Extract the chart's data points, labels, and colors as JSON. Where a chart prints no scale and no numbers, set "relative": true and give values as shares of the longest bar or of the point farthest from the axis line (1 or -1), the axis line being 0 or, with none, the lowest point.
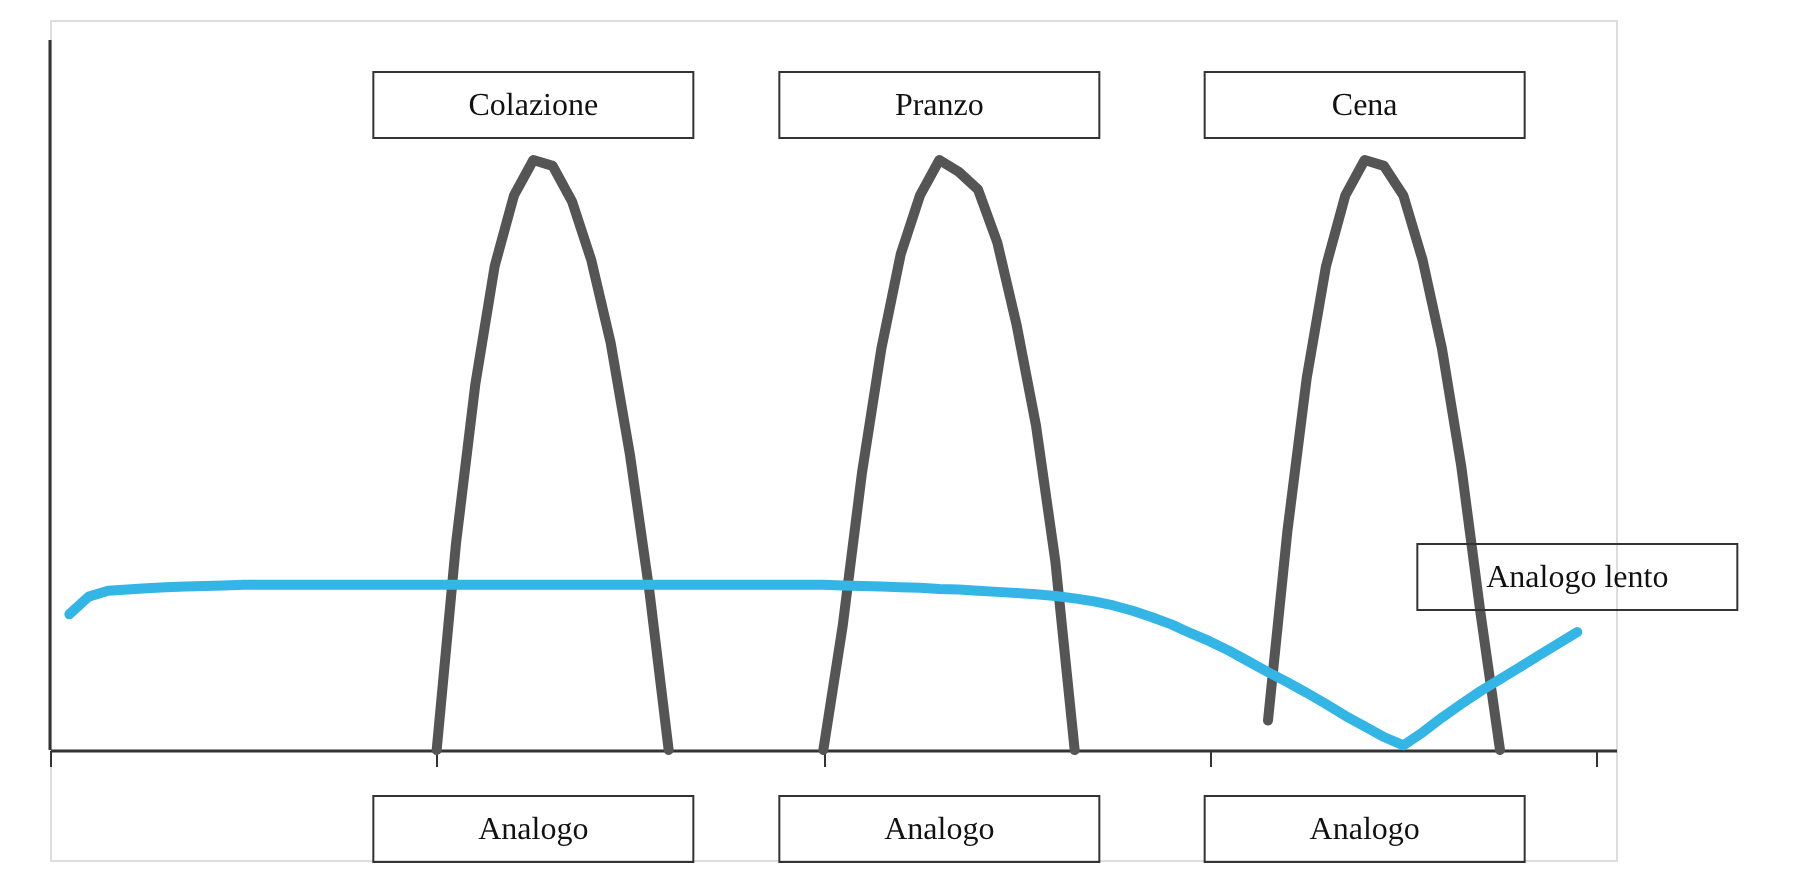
{
  "chart_data": {
    "type": "line",
    "relative": true,
    "grid": false,
    "marker": "none",
    "line_style": "solid",
    "categories": [
      null,
      null,
      null,
      null,
      null,
      null,
      null,
      null,
      null,
      null,
      null,
      null,
      null,
      null,
      null,
      null,
      null,
      null,
      null,
      null,
      null,
      null,
      null,
      null,
      null,
      null,
      null,
      null,
      null,
      null,
      null,
      null,
      null,
      null,
      null,
      null,
      null,
      null,
      null,
      null,
      null,
      null,
      null,
      null,
      null,
      null,
      null,
      null,
      null,
      null,
      null,
      null,
      null,
      null,
      null,
      null,
      null,
      null,
      null,
      null,
      null,
      null,
      null,
      null,
      null,
      null,
      null,
      null,
      null,
      null,
      null,
      null,
      null,
      null,
      null,
      null,
      null,
      null,
      null,
      null,
      null,
      null
    ],
    "series": [
      {
        "color": "#555555",
        "values": [
          null,
          null,
          null,
          null,
          null,
          null,
          null,
          null,
          null,
          null,
          null,
          null,
          null,
          null,
          null,
          null,
          null,
          null,
          null,
          null,
          0,
          0.35,
          0.62,
          0.82,
          0.94,
          1,
          0.99,
          0.93,
          0.83,
          0.69,
          0.5,
          0.27,
          0,
          null,
          null,
          null,
          null,
          null,
          null,
          null,
          null,
          null,
          null,
          null,
          null,
          null,
          null,
          null,
          null,
          null,
          null,
          null,
          null,
          null,
          null,
          null,
          null,
          null,
          null,
          null,
          null,
          null,
          null,
          null,
          null,
          null,
          null,
          null,
          null,
          null,
          null,
          null,
          null,
          null,
          null,
          null,
          null,
          null,
          null,
          null,
          null,
          null
        ]
      },
      {
        "color": "#555555",
        "values": [
          null,
          null,
          null,
          null,
          null,
          null,
          null,
          null,
          null,
          null,
          null,
          null,
          null,
          null,
          null,
          null,
          null,
          null,
          null,
          null,
          null,
          null,
          null,
          null,
          null,
          null,
          null,
          null,
          null,
          null,
          null,
          null,
          null,
          null,
          null,
          null,
          null,
          null,
          null,
          null,
          0,
          0.21,
          0.47,
          0.68,
          0.84,
          0.94,
          1,
          0.98,
          0.95,
          0.86,
          0.72,
          0.55,
          0.32,
          0,
          null,
          null,
          null,
          null,
          null,
          null,
          null,
          null,
          null,
          null,
          null,
          null,
          null,
          null,
          null,
          null,
          null,
          null,
          null,
          null,
          null,
          null,
          null,
          null,
          null,
          null,
          null,
          null
        ]
      },
      {
        "color": "#555555",
        "values": [
          null,
          null,
          null,
          null,
          null,
          null,
          null,
          null,
          null,
          null,
          null,
          null,
          null,
          null,
          null,
          null,
          null,
          null,
          null,
          null,
          null,
          null,
          null,
          null,
          null,
          null,
          null,
          null,
          null,
          null,
          null,
          null,
          null,
          null,
          null,
          null,
          null,
          null,
          null,
          null,
          null,
          null,
          null,
          null,
          null,
          null,
          null,
          null,
          null,
          null,
          null,
          null,
          null,
          null,
          null,
          null,
          null,
          null,
          null,
          null,
          null,
          null,
          null,
          0.05,
          0.37,
          0.63,
          0.82,
          0.94,
          1,
          0.99,
          0.94,
          0.83,
          0.68,
          0.48,
          0.23,
          0,
          null,
          null,
          null,
          null,
          null,
          null
        ]
      },
      {
        "color": "#33b5e5",
        "values": [
          null,
          0.23,
          0.26,
          0.27,
          0.272,
          0.274,
          0.276,
          0.277,
          0.278,
          0.279,
          0.28,
          0.28,
          0.28,
          0.28,
          0.28,
          0.28,
          0.28,
          0.28,
          0.28,
          0.28,
          0.28,
          0.28,
          0.28,
          0.28,
          0.28,
          0.28,
          0.28,
          0.28,
          0.28,
          0.28,
          0.28,
          0.28,
          0.28,
          0.28,
          0.28,
          0.28,
          0.28,
          0.28,
          0.28,
          0.28,
          0.28,
          0.279,
          0.278,
          0.277,
          0.276,
          0.275,
          0.273,
          0.272,
          0.27,
          0.268,
          0.266,
          0.264,
          0.261,
          0.257,
          0.252,
          0.245,
          0.236,
          0.225,
          0.213,
          0.198,
          0.184,
          0.168,
          0.15,
          0.132,
          0.115,
          0.097,
          0.078,
          0.058,
          0.04,
          0.022,
          0.008,
          0.03,
          0.055,
          0.078,
          0.1,
          0.12,
          0.14,
          0.16,
          0.18,
          0.2,
          null,
          null
        ]
      }
    ],
    "annotations": [
      "Colazione",
      "Pranzo",
      "Cena",
      "Analogo",
      "Analogo",
      "Analogo",
      "Analogo lento"
    ]
  }
}
